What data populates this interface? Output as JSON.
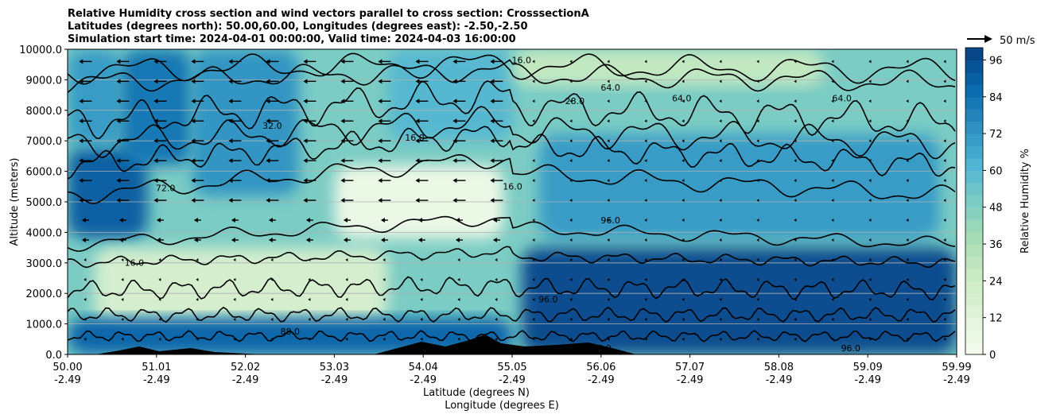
{
  "chart_data": {
    "type": "heatmap",
    "title_lines": [
      "Relative Humidity cross section and wind vectors parallel to cross section: CrosssectionA",
      "Latitudes (degrees north): 50.00,60.00, Longitudes (degrees east): -2.50,-2.50",
      "Simulation start time: 2024-04-01 00:00:00, Valid time: 2024-04-03 16:00:00"
    ],
    "ylabel": "Altitude (meters)",
    "xlabel_lines": [
      "Latitude (degrees N)",
      "Longitude (degrees E)"
    ],
    "ylim": [
      0,
      10000
    ],
    "xlim": [
      50.0,
      59.99
    ],
    "yticks": [
      0,
      1000,
      2000,
      3000,
      4000,
      5000,
      6000,
      7000,
      8000,
      9000,
      10000
    ],
    "ytick_labels": [
      "0.0",
      "1000.0",
      "2000.0",
      "3000.0",
      "4000.0",
      "5000.0",
      "6000.0",
      "7000.0",
      "8000.0",
      "9000.0",
      "10000.0"
    ],
    "xticks": [
      {
        "lat": "50.00",
        "lon": "-2.49"
      },
      {
        "lat": "51.01",
        "lon": "-2.49"
      },
      {
        "lat": "52.02",
        "lon": "-2.49"
      },
      {
        "lat": "53.03",
        "lon": "-2.49"
      },
      {
        "lat": "54.04",
        "lon": "-2.49"
      },
      {
        "lat": "55.05",
        "lon": "-2.49"
      },
      {
        "lat": "56.06",
        "lon": "-2.49"
      },
      {
        "lat": "57.07",
        "lon": "-2.49"
      },
      {
        "lat": "58.08",
        "lon": "-2.49"
      },
      {
        "lat": "59.09",
        "lon": "-2.49"
      },
      {
        "lat": "59.99",
        "lon": "-2.49"
      }
    ],
    "colorbar": {
      "label": "Relative Humidity %",
      "range": [
        0,
        100
      ],
      "ticks": [
        0,
        12,
        24,
        36,
        48,
        60,
        72,
        84,
        96
      ],
      "colors": [
        "#f7fcf0",
        "#e0f3db",
        "#ccebc5",
        "#a8ddb5",
        "#7bccc4",
        "#4eb3d3",
        "#2b8cbe",
        "#0868ac",
        "#084081"
      ]
    },
    "wind_key": "50 m/s",
    "grid": true,
    "rh_regions": [
      {
        "lat": [
          50.0,
          50.9
        ],
        "alt": [
          3800,
          6800
        ],
        "rh": 90
      },
      {
        "lat": [
          50.0,
          50.6
        ],
        "alt": [
          6800,
          10000
        ],
        "rh": 70
      },
      {
        "lat": [
          50.6,
          51.4
        ],
        "alt": [
          6200,
          10000
        ],
        "rh": 82
      },
      {
        "lat": [
          51.4,
          52.6
        ],
        "alt": [
          5200,
          10000
        ],
        "rh": 72
      },
      {
        "lat": [
          50.3,
          53.6
        ],
        "alt": [
          1000,
          3500
        ],
        "rh": 20
      },
      {
        "lat": [
          53.0,
          54.9
        ],
        "alt": [
          3800,
          6200
        ],
        "rh": 6
      },
      {
        "lat": [
          53.6,
          55.0
        ],
        "alt": [
          7000,
          10000
        ],
        "rh": 60
      },
      {
        "lat": [
          55.3,
          59.8
        ],
        "alt": [
          3800,
          7200
        ],
        "rh": 70
      },
      {
        "lat": [
          55.1,
          59.99
        ],
        "alt": [
          0,
          3500
        ],
        "rh": 96
      },
      {
        "lat": [
          55.0,
          58.5
        ],
        "alt": [
          8800,
          10000
        ],
        "rh": 28
      },
      {
        "lat": [
          50.0,
          55.0
        ],
        "alt": [
          0,
          1200
        ],
        "rh": 88
      }
    ],
    "contour_labels": [
      {
        "text": "16.0",
        "lat": 55.1,
        "alt": 9550
      },
      {
        "text": "64.0",
        "lat": 56.1,
        "alt": 8650
      },
      {
        "text": "64.0",
        "lat": 56.9,
        "alt": 8300
      },
      {
        "text": "64.0",
        "lat": 58.7,
        "alt": 8300
      },
      {
        "text": "28.0",
        "lat": 55.7,
        "alt": 8200
      },
      {
        "text": "72.0",
        "lat": 51.1,
        "alt": 5350
      },
      {
        "text": "32.0",
        "lat": 52.3,
        "alt": 7400
      },
      {
        "text": "16.0",
        "lat": 53.9,
        "alt": 7000
      },
      {
        "text": "16.0",
        "lat": 55.0,
        "alt": 5400
      },
      {
        "text": "16.0",
        "lat": 50.75,
        "alt": 2900
      },
      {
        "text": "96.0",
        "lat": 56.1,
        "alt": 4300
      },
      {
        "text": "96.0",
        "lat": 56.0,
        "alt": 100
      },
      {
        "text": "88.0",
        "lat": 52.5,
        "alt": 650
      },
      {
        "text": "96.0",
        "lat": 55.4,
        "alt": 1700
      },
      {
        "text": "96.0",
        "lat": 58.8,
        "alt": 100
      }
    ]
  }
}
